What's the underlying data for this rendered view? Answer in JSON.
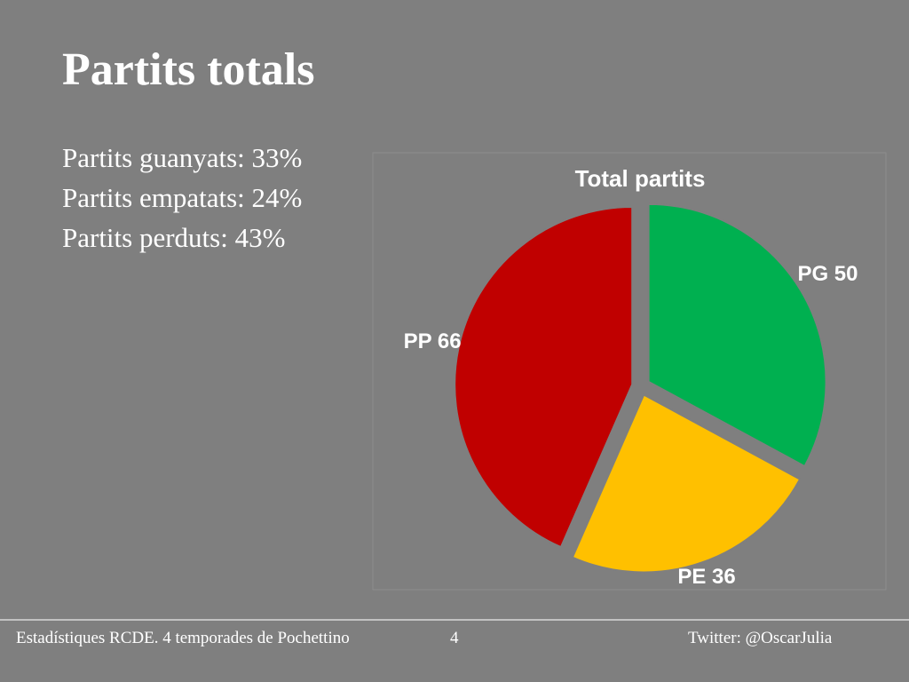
{
  "slide": {
    "title": "Partits totals",
    "lines": [
      "Partits guanyats: 33%",
      "Partits empatats: 24%",
      "Partits perduts: 43%"
    ],
    "footer": {
      "left": "Estadístiques RCDE. 4 temporades de Pochettino",
      "page": "4",
      "right": "Twitter: @OscarJulia"
    }
  },
  "chart_data": {
    "type": "pie",
    "title": "Total partits",
    "values": [
      50,
      36,
      66
    ],
    "value_labels": [
      "PG 50",
      "PE 36",
      "PP 66"
    ],
    "colors": [
      "#00b050",
      "#ffc000",
      "#c00000"
    ]
  }
}
